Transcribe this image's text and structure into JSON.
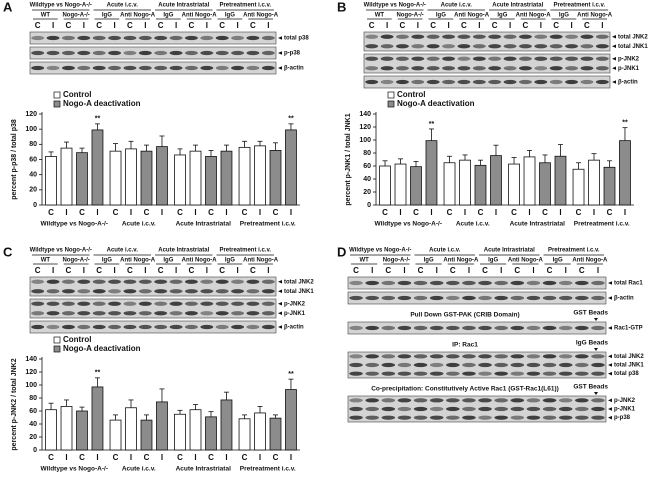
{
  "chart_data": [
    {
      "type": "bar",
      "panel": "A",
      "ylabel": "percent p-p38 / total p38",
      "categories": [
        "C",
        "I",
        "C",
        "I",
        "C",
        "I",
        "C",
        "I",
        "C",
        "I",
        "C",
        "I",
        "C",
        "I",
        "C",
        "I"
      ],
      "groups": [
        "Wildtype vs Nogo-A-/-",
        "Acute i.c.v.",
        "Acute Intrastriatal",
        "Pretreatment i.c.v."
      ],
      "series": [
        {
          "name": "Control",
          "color": "#ffffff",
          "values": [
            64,
            75,
            null,
            null,
            71,
            74,
            null,
            null,
            66,
            71,
            null,
            null,
            76,
            78,
            null,
            null
          ],
          "errors": [
            6,
            8,
            null,
            null,
            10,
            10,
            null,
            null,
            8,
            8,
            null,
            null,
            8,
            6,
            null,
            null
          ]
        },
        {
          "name": "Nogo-A deactivation",
          "color": "#8c8c8c",
          "values": [
            null,
            null,
            69,
            99,
            null,
            null,
            71,
            77,
            null,
            null,
            64,
            71,
            null,
            null,
            72,
            99
          ],
          "errors": [
            null,
            null,
            6,
            8,
            null,
            null,
            8,
            14,
            null,
            null,
            8,
            8,
            null,
            null,
            10,
            8
          ]
        }
      ],
      "significance": [
        null,
        null,
        null,
        "**",
        null,
        null,
        null,
        null,
        null,
        null,
        null,
        null,
        null,
        null,
        null,
        "**"
      ],
      "ylim": [
        0,
        120
      ],
      "yticks": [
        0,
        20,
        40,
        60,
        80,
        100,
        120
      ],
      "blot": {
        "groups": [
          "Wildtype vs Nogo-A-/-",
          "Acute i.c.v.",
          "Acute Intrastriatal",
          "Pretreatment i.c.v."
        ],
        "subgroups": [
          "WT",
          "Nogo-A-/-",
          "IgG",
          "Anti Nogo-A",
          "IgG",
          "Anti Nogo-A",
          "IgG",
          "Anti Nogo-A"
        ],
        "lanes": [
          "C",
          "I",
          "C",
          "I",
          "C",
          "I",
          "C",
          "I",
          "C",
          "I",
          "C",
          "I",
          "C",
          "I",
          "C",
          "I"
        ],
        "bands": [
          [
            "total p38"
          ],
          [
            "p-p38"
          ],
          [
            "β-actin"
          ]
        ]
      }
    },
    {
      "type": "bar",
      "panel": "B",
      "ylabel": "percent p-JNK1 / total JNK1",
      "categories": [
        "C",
        "I",
        "C",
        "I",
        "C",
        "I",
        "C",
        "I",
        "C",
        "I",
        "C",
        "I",
        "C",
        "I",
        "C",
        "I"
      ],
      "groups": [
        "Wildtype vs Nogo-A-/-",
        "Acute i.c.v.",
        "Acute Intrastriatal",
        "Pretreatment i.c.v."
      ],
      "series": [
        {
          "name": "Control",
          "color": "#ffffff",
          "values": [
            60,
            63,
            null,
            null,
            65,
            69,
            null,
            null,
            63,
            74,
            null,
            null,
            55,
            69,
            null,
            null
          ],
          "errors": [
            8,
            8,
            null,
            null,
            10,
            8,
            null,
            null,
            10,
            10,
            null,
            null,
            10,
            10,
            null,
            null
          ]
        },
        {
          "name": "Nogo-A deactivation",
          "color": "#8c8c8c",
          "values": [
            null,
            null,
            59,
            99,
            null,
            null,
            61,
            76,
            null,
            null,
            65,
            75,
            null,
            null,
            58,
            99
          ],
          "errors": [
            null,
            null,
            8,
            18,
            null,
            null,
            8,
            16,
            null,
            null,
            12,
            18,
            null,
            null,
            10,
            20
          ]
        }
      ],
      "significance": [
        null,
        null,
        null,
        "**",
        null,
        null,
        null,
        null,
        null,
        null,
        null,
        null,
        null,
        null,
        null,
        "**"
      ],
      "ylim": [
        0,
        140
      ],
      "yticks": [
        0,
        20,
        40,
        60,
        80,
        100,
        120,
        140
      ],
      "blot": {
        "groups": [
          "Wildtype vs Nogo-A-/-",
          "Acute i.c.v.",
          "Acute Intrastriatal",
          "Pretreatment i.c.v."
        ],
        "subgroups": [
          "WT",
          "Nogo-A-/-",
          "IgG",
          "Anti Nogo-A",
          "IgG",
          "Anti Nogo-A",
          "IgG",
          "Anti Nogo-A"
        ],
        "lanes": [
          "C",
          "I",
          "C",
          "I",
          "C",
          "I",
          "C",
          "I",
          "C",
          "I",
          "C",
          "I",
          "C",
          "I",
          "C",
          "I"
        ],
        "bands": [
          [
            "total JNK2",
            "total JNK1"
          ],
          [
            "p-JNK2",
            "p-JNK1"
          ],
          [
            "β-actin"
          ]
        ]
      }
    },
    {
      "type": "bar",
      "panel": "C",
      "ylabel": "percent p-JNK2 / total JNK2",
      "categories": [
        "C",
        "I",
        "C",
        "I",
        "C",
        "I",
        "C",
        "I",
        "C",
        "I",
        "C",
        "I",
        "C",
        "I",
        "C",
        "I"
      ],
      "groups": [
        "Wildtype vs Nogo-A-/-",
        "Acute i.c.v.",
        "Acute Intrastriatal",
        "Pretreatment i.c.v."
      ],
      "series": [
        {
          "name": "Control",
          "color": "#ffffff",
          "values": [
            62,
            67,
            null,
            null,
            46,
            65,
            null,
            null,
            55,
            62,
            null,
            null,
            48,
            57,
            null,
            null
          ],
          "errors": [
            10,
            10,
            null,
            null,
            8,
            12,
            null,
            null,
            6,
            8,
            null,
            null,
            6,
            10,
            null,
            null
          ]
        },
        {
          "name": "Nogo-A deactivation",
          "color": "#8c8c8c",
          "values": [
            null,
            null,
            60,
            97,
            null,
            null,
            46,
            74,
            null,
            null,
            51,
            77,
            null,
            null,
            49,
            93
          ],
          "errors": [
            null,
            null,
            6,
            14,
            null,
            null,
            8,
            20,
            null,
            null,
            8,
            12,
            null,
            null,
            5,
            16
          ]
        }
      ],
      "significance": [
        null,
        null,
        null,
        "**",
        null,
        null,
        null,
        null,
        null,
        null,
        null,
        null,
        null,
        null,
        null,
        "**"
      ],
      "ylim": [
        0,
        140
      ],
      "yticks": [
        0,
        20,
        40,
        60,
        80,
        100,
        120,
        140
      ],
      "blot": {
        "groups": [
          "Wildtype vs Nogo-A-/-",
          "Acute i.c.v.",
          "Acute Intrastriatal",
          "Pretreatment i.c.v."
        ],
        "subgroups": [
          "WT",
          "Nogo-A-/-",
          "IgG",
          "Anti Nogo-A",
          "IgG",
          "Anti Nogo-A",
          "IgG",
          "Anti Nogo-A"
        ],
        "lanes": [
          "C",
          "I",
          "C",
          "I",
          "C",
          "I",
          "C",
          "I",
          "C",
          "I",
          "C",
          "I",
          "C",
          "I",
          "C",
          "I"
        ],
        "bands": [
          [
            "total JNK2",
            "total JNK1"
          ],
          [
            "p-JNK2",
            "p-JNK1"
          ],
          [
            "β-actin"
          ]
        ]
      }
    }
  ],
  "blot_panel": {
    "label": "D",
    "groups": [
      "Wildtype vs Nogo-A-/-",
      "Acute i.c.v.",
      "Acute Intrastriatal",
      "Pretreatment i.c.v."
    ],
    "subgroups": [
      "WT",
      "Nogo-A-/-",
      "IgG",
      "Anti Nogo-A",
      "IgG",
      "Anti Nogo-A",
      "IgG",
      "Anti Nogo-A"
    ],
    "lanes": [
      "C",
      "I",
      "C",
      "I",
      "C",
      "I",
      "C",
      "I",
      "C",
      "I",
      "C",
      "I",
      "C",
      "I",
      "C",
      "I"
    ],
    "sections": [
      {
        "bands": [
          [
            "total Rac1"
          ],
          [
            "β-actin"
          ]
        ]
      },
      {
        "title": "Pull Down GST-PAK (CRIB Domain)",
        "marker": "GST Beads",
        "bands": [
          [
            "Rac1-GTP"
          ]
        ]
      },
      {
        "title": "IP: Rac1",
        "marker": "IgG Beads",
        "bands": [
          [
            "total JNK2",
            "total JNK1",
            "total p38"
          ]
        ]
      },
      {
        "title": "Co-precipitation: Constitutively Active Rac1 (GST-Rac1(L61))",
        "marker": "GST Beads",
        "bands": [
          [
            "p-JNK2",
            "p-JNK1",
            "p-p38"
          ]
        ]
      }
    ]
  }
}
